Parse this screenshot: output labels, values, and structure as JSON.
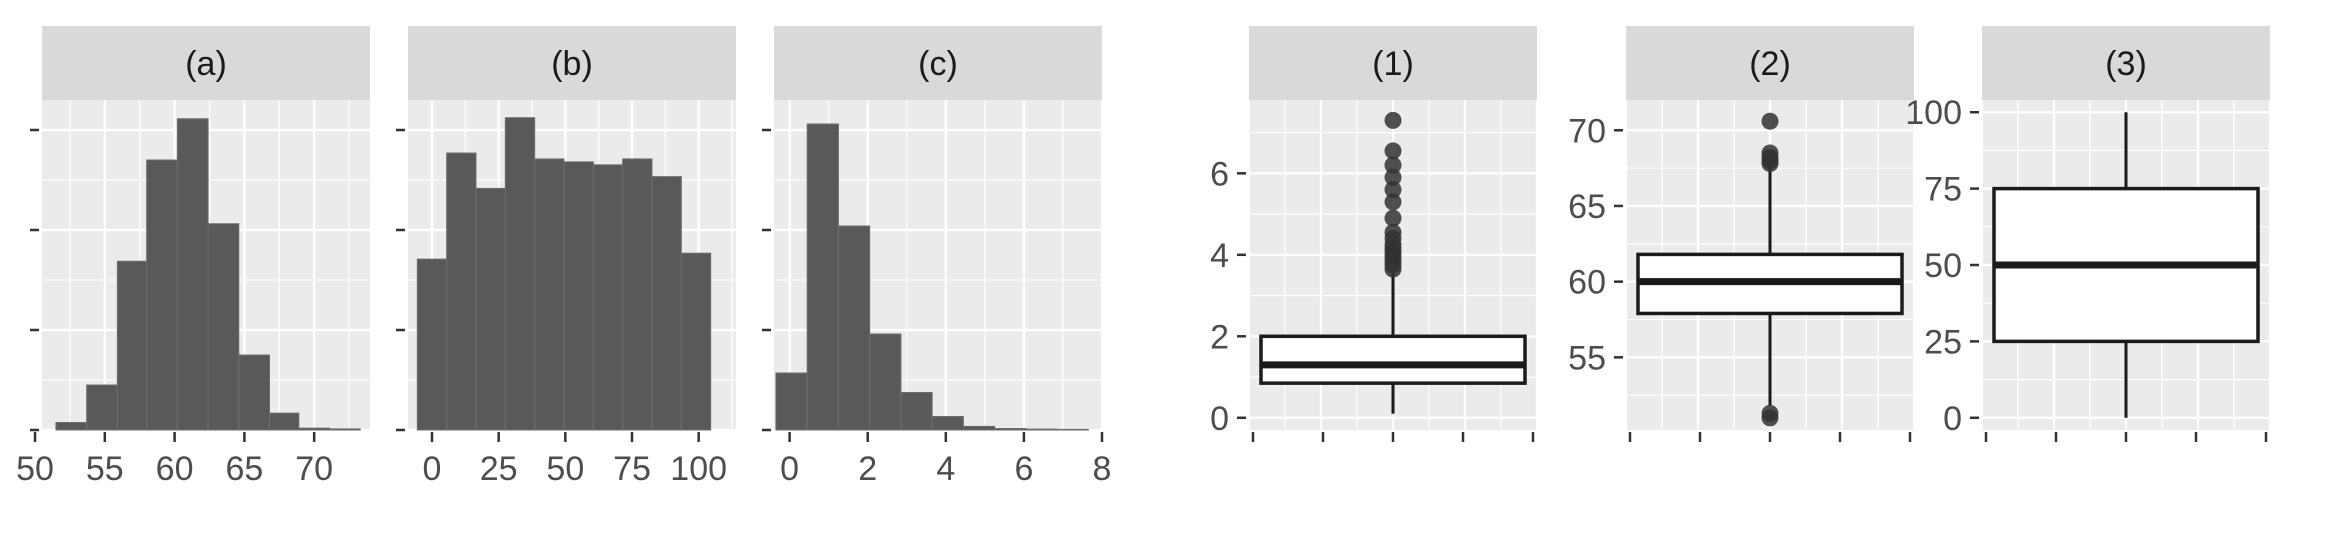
{
  "colors": {
    "panel_bg": "#ebebeb",
    "strip_bg": "#d9d9d9",
    "grid": "#ffffff",
    "bar_fill": "#595959",
    "bar_edge": "#6e6e6e",
    "box_line": "#1a1a1a",
    "outlier": "#333333",
    "tick": "#333333",
    "tick_label": "#4d4d4d"
  },
  "chart_data": [
    {
      "type": "bar",
      "facet": "(a)",
      "xlim": [
        50.5,
        74
      ],
      "xticks": [
        50,
        55,
        60,
        65,
        70
      ],
      "ylim": [
        0,
        880
      ],
      "bins": [
        {
          "x0": 51.5,
          "x1": 53.7,
          "count": 20
        },
        {
          "x0": 53.7,
          "x1": 55.9,
          "count": 120
        },
        {
          "x0": 55.9,
          "x1": 58.0,
          "count": 450
        },
        {
          "x0": 58.0,
          "x1": 60.2,
          "count": 720
        },
        {
          "x0": 60.2,
          "x1": 62.4,
          "count": 830
        },
        {
          "x0": 62.4,
          "x1": 64.6,
          "count": 550
        },
        {
          "x0": 64.6,
          "x1": 66.8,
          "count": 200
        },
        {
          "x0": 66.8,
          "x1": 68.9,
          "count": 45
        },
        {
          "x0": 68.9,
          "x1": 71.1,
          "count": 5
        },
        {
          "x0": 71.1,
          "x1": 73.3,
          "count": 3
        }
      ]
    },
    {
      "type": "bar",
      "facet": "(b)",
      "xlim": [
        -9,
        114
      ],
      "xticks": [
        0,
        25,
        50,
        75,
        100
      ],
      "ylim": [
        0,
        560
      ],
      "bins": [
        {
          "x0": -5.5,
          "x1": 5.5,
          "count": 290
        },
        {
          "x0": 5.5,
          "x1": 16.5,
          "count": 470
        },
        {
          "x0": 16.5,
          "x1": 27.5,
          "count": 410
        },
        {
          "x0": 27.5,
          "x1": 38.5,
          "count": 530
        },
        {
          "x0": 38.5,
          "x1": 49.5,
          "count": 460
        },
        {
          "x0": 49.5,
          "x1": 60.5,
          "count": 455
        },
        {
          "x0": 60.5,
          "x1": 71.5,
          "count": 450
        },
        {
          "x0": 71.5,
          "x1": 82.5,
          "count": 460
        },
        {
          "x0": 82.5,
          "x1": 93.5,
          "count": 430
        },
        {
          "x0": 93.5,
          "x1": 104.5,
          "count": 300
        }
      ]
    },
    {
      "type": "bar",
      "facet": "(c)",
      "xlim": [
        -0.4,
        8
      ],
      "xticks": [
        0,
        2,
        4,
        6,
        8
      ],
      "ylim": [
        0,
        1100
      ],
      "bins": [
        {
          "x0": -0.35,
          "x1": 0.45,
          "count": 190
        },
        {
          "x0": 0.45,
          "x1": 1.25,
          "count": 1020
        },
        {
          "x0": 1.25,
          "x1": 2.05,
          "count": 680
        },
        {
          "x0": 2.05,
          "x1": 2.85,
          "count": 320
        },
        {
          "x0": 2.85,
          "x1": 3.65,
          "count": 125
        },
        {
          "x0": 3.65,
          "x1": 4.45,
          "count": 45
        },
        {
          "x0": 4.45,
          "x1": 5.25,
          "count": 12
        },
        {
          "x0": 5.25,
          "x1": 6.05,
          "count": 5
        },
        {
          "x0": 6.05,
          "x1": 6.85,
          "count": 3
        },
        {
          "x0": 6.85,
          "x1": 7.65,
          "count": 2
        }
      ]
    },
    {
      "type": "box",
      "facet": "(1)",
      "ylim": [
        -0.3,
        7.8
      ],
      "yticks": [
        0,
        2,
        4,
        6
      ],
      "box": {
        "lower_whisker": 0.1,
        "q1": 0.85,
        "median": 1.3,
        "q3": 2.0,
        "upper_whisker": 3.55
      },
      "outliers": [
        3.65,
        3.75,
        3.85,
        3.95,
        4.05,
        4.15,
        4.25,
        4.4,
        4.55,
        4.9,
        5.3,
        5.6,
        5.9,
        6.2,
        6.55,
        7.3
      ]
    },
    {
      "type": "box",
      "facet": "(2)",
      "ylim": [
        50.2,
        72.0
      ],
      "yticks": [
        55,
        60,
        65,
        70
      ],
      "box": {
        "lower_whisker": 51.8,
        "q1": 57.9,
        "median": 60.0,
        "q3": 61.8,
        "upper_whisker": 67.6
      },
      "outliers": [
        51.0,
        51.3,
        67.8,
        68.0,
        68.2,
        68.5,
        70.6
      ]
    },
    {
      "type": "box",
      "facet": "(3)",
      "ylim": [
        -4,
        104
      ],
      "yticks": [
        0,
        25,
        50,
        75,
        100
      ],
      "box": {
        "lower_whisker": 0,
        "q1": 25,
        "median": 50,
        "q3": 75,
        "upper_whisker": 100
      },
      "outliers": []
    }
  ]
}
